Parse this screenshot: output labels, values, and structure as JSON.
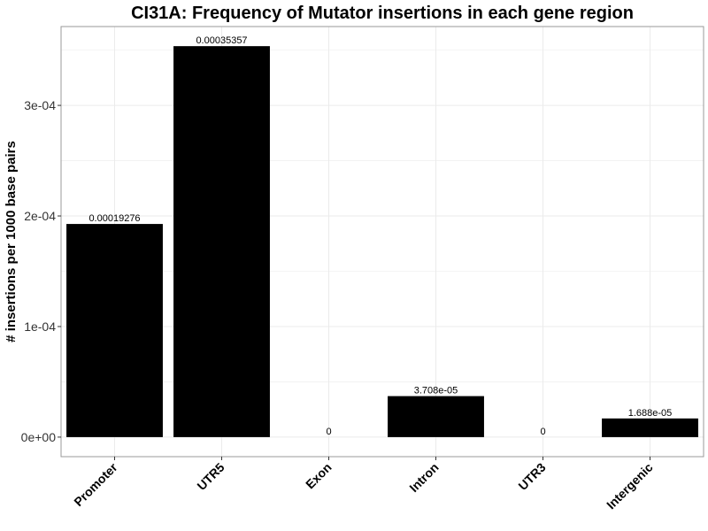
{
  "chart_data": {
    "type": "bar",
    "title": "CI31A: Frequency of Mutator insertions in each gene region",
    "xlabel": "",
    "ylabel": "# insertions per 1000 base pairs",
    "categories": [
      "Promoter",
      "UTR5",
      "Exon",
      "Intron",
      "UTR3",
      "Intergenic"
    ],
    "values": [
      0.00019276,
      0.00035357,
      0,
      3.708e-05,
      0,
      1.688e-05
    ],
    "data_labels": [
      "0.00019276",
      "0.00035357",
      "0",
      "3.708e-05",
      "0",
      "1.688e-05"
    ],
    "ylim": [
      -1.768e-05,
      0.0003713
    ],
    "yticks": [
      0,
      0.0001,
      0.0002,
      0.0003
    ],
    "ytick_labels": [
      "0e+00",
      "1e-04",
      "2e-04",
      "3e-04"
    ],
    "grid": true,
    "bar_color": "#000000",
    "grid_color": "#ebebeb",
    "panel_border_color": "#999999"
  }
}
